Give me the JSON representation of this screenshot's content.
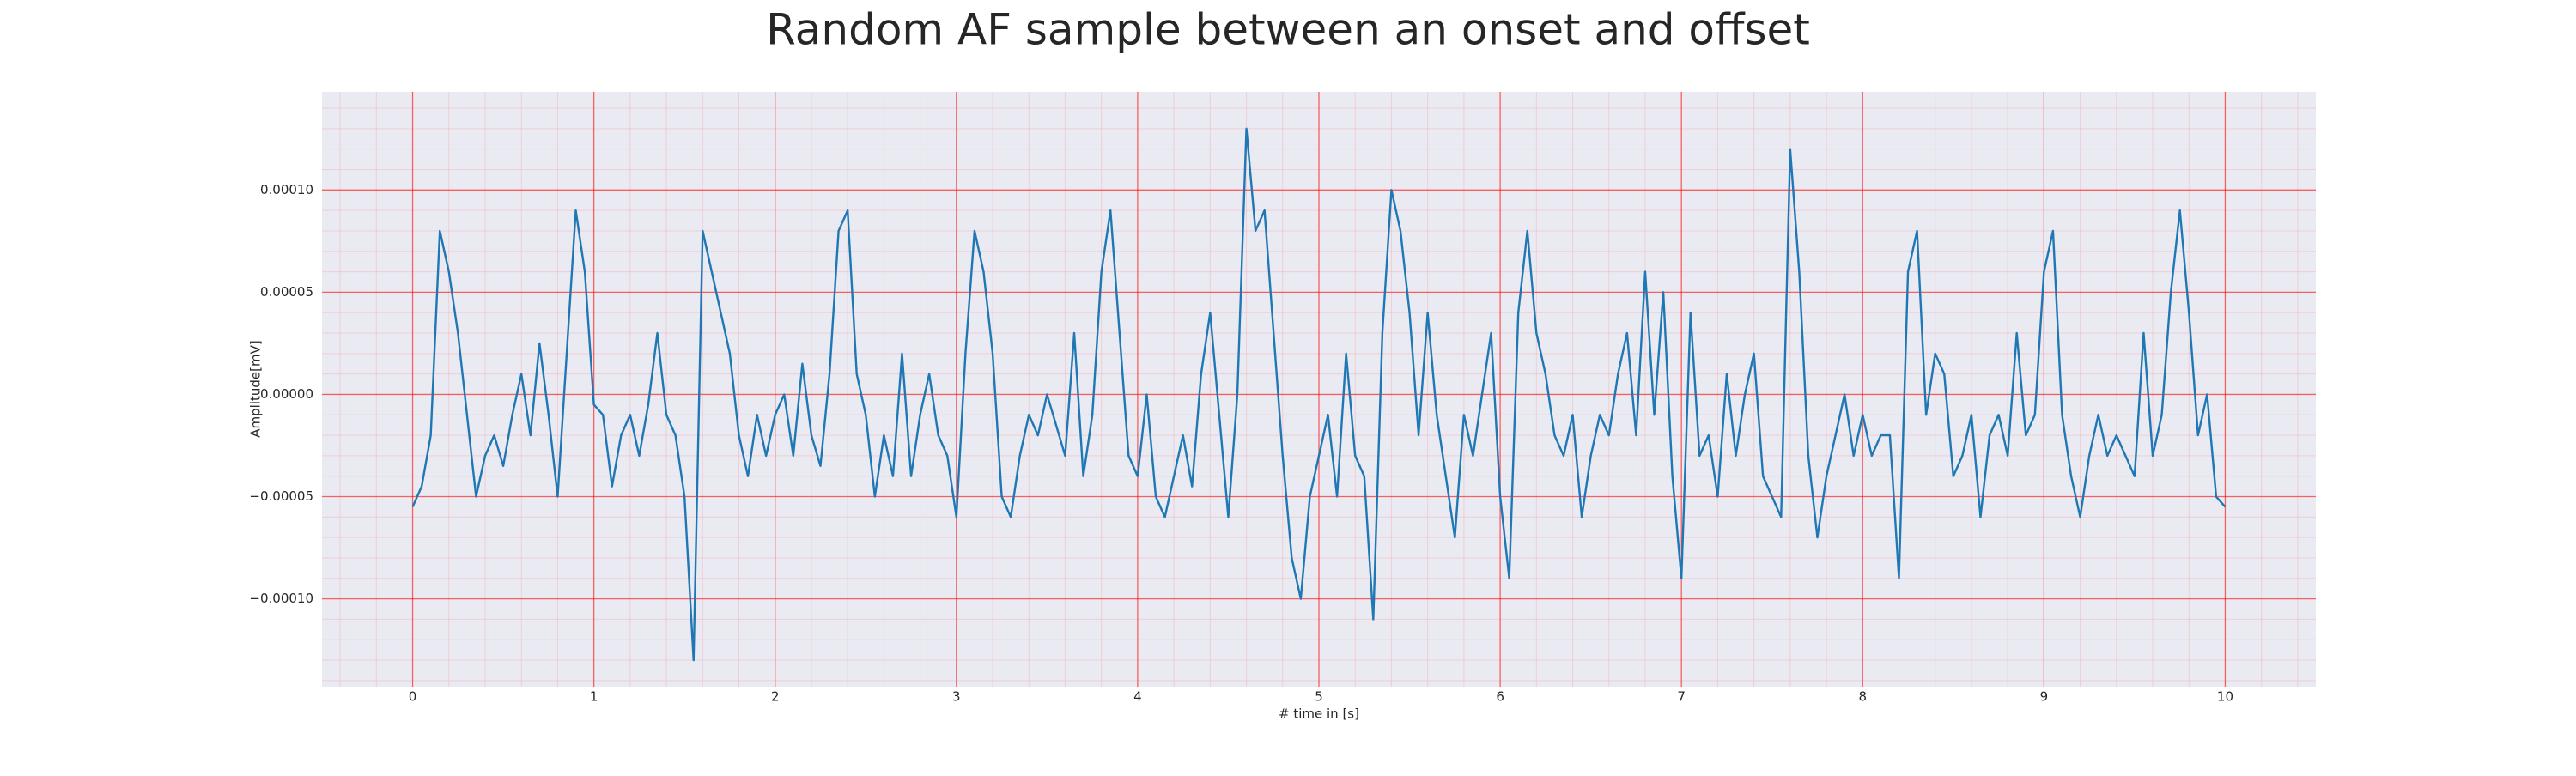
{
  "chart_data": {
    "type": "line",
    "title": "Random AF sample between an onset and offset",
    "xlabel": "# time in [s]",
    "ylabel": "Amplitude[mV]",
    "color": "#1f77b4",
    "grid": true,
    "minor_grid": true,
    "xlim": [
      -0.5,
      10.5
    ],
    "ylim": [
      -0.000143,
      0.000148
    ],
    "xticks": [
      0,
      1,
      2,
      3,
      4,
      5,
      6,
      7,
      8,
      9,
      10
    ],
    "yticks": [
      {
        "value": -0.0001,
        "label": "−0.00010"
      },
      {
        "value": -5e-05,
        "label": "−0.00005"
      },
      {
        "value": 0,
        "label": "0.00000"
      },
      {
        "value": 5e-05,
        "label": "0.00005"
      },
      {
        "value": 0.0001,
        "label": "0.00010"
      }
    ],
    "minor_xticks": [
      -0.4,
      -0.2,
      0,
      0.2,
      0.4,
      0.6,
      0.8,
      1,
      1.2,
      1.4,
      1.6,
      1.8,
      2,
      2.2,
      2.4,
      2.6,
      2.8,
      3,
      3.2,
      3.4,
      3.6,
      3.8,
      4,
      4.2,
      4.4,
      4.6,
      4.8,
      5,
      5.2,
      5.4,
      5.6,
      5.8,
      6,
      6.2,
      6.4,
      6.6,
      6.8,
      7,
      7.2,
      7.4,
      7.6,
      7.8,
      8,
      8.2,
      8.4,
      8.6,
      8.8,
      9,
      9.2,
      9.4,
      9.6,
      9.8,
      10,
      10.2,
      10.4
    ],
    "minor_yticks": [
      -0.00014,
      -0.00013,
      -0.00012,
      -0.00011,
      -0.0001,
      -9e-05,
      -8e-05,
      -7e-05,
      -6e-05,
      -5e-05,
      -4e-05,
      -3e-05,
      -2e-05,
      -1e-05,
      0,
      1e-05,
      2e-05,
      3e-05,
      4e-05,
      5e-05,
      6e-05,
      7e-05,
      8e-05,
      9e-05,
      0.0001,
      0.00011,
      0.00012,
      0.00013,
      0.00014
    ],
    "x": [
      0,
      0.05,
      0.1,
      0.15,
      0.2,
      0.25,
      0.3,
      0.35,
      0.4,
      0.45,
      0.5,
      0.55,
      0.6,
      0.65,
      0.7,
      0.75,
      0.8,
      0.85,
      0.9,
      0.95,
      1,
      1.05,
      1.1,
      1.15,
      1.2,
      1.25,
      1.3,
      1.35,
      1.4,
      1.45,
      1.5,
      1.55,
      1.6,
      1.65,
      1.7,
      1.75,
      1.8,
      1.85,
      1.9,
      1.95,
      2,
      2.05,
      2.1,
      2.15,
      2.2,
      2.25,
      2.3,
      2.35,
      2.4,
      2.45,
      2.5,
      2.55,
      2.6,
      2.65,
      2.7,
      2.75,
      2.8,
      2.85,
      2.9,
      2.95,
      3,
      3.05,
      3.1,
      3.15,
      3.2,
      3.25,
      3.3,
      3.35,
      3.4,
      3.45,
      3.5,
      3.55,
      3.6,
      3.65,
      3.7,
      3.75,
      3.8,
      3.85,
      3.9,
      3.95,
      4,
      4.05,
      4.1,
      4.15,
      4.2,
      4.25,
      4.3,
      4.35,
      4.4,
      4.45,
      4.5,
      4.55,
      4.6,
      4.65,
      4.7,
      4.75,
      4.8,
      4.85,
      4.9,
      4.95,
      5,
      5.05,
      5.1,
      5.15,
      5.2,
      5.25,
      5.3,
      5.35,
      5.4,
      5.45,
      5.5,
      5.55,
      5.6,
      5.65,
      5.7,
      5.75,
      5.8,
      5.85,
      5.9,
      5.95,
      6,
      6.05,
      6.1,
      6.15,
      6.2,
      6.25,
      6.3,
      6.35,
      6.4,
      6.45,
      6.5,
      6.55,
      6.6,
      6.65,
      6.7,
      6.75,
      6.8,
      6.85,
      6.9,
      6.95,
      7,
      7.05,
      7.1,
      7.15,
      7.2,
      7.25,
      7.3,
      7.35,
      7.4,
      7.45,
      7.5,
      7.55,
      7.6,
      7.65,
      7.7,
      7.75,
      7.8,
      7.85,
      7.9,
      7.95,
      8,
      8.05,
      8.1,
      8.15,
      8.2,
      8.25,
      8.3,
      8.35,
      8.4,
      8.45,
      8.5,
      8.55,
      8.6,
      8.65,
      8.7,
      8.75,
      8.8,
      8.85,
      8.9,
      8.95,
      9,
      9.05,
      9.1,
      9.15,
      9.2,
      9.25,
      9.3,
      9.35,
      9.4,
      9.45,
      9.5,
      9.55,
      9.6,
      9.65,
      9.7,
      9.75,
      9.8,
      9.85,
      9.9,
      9.95,
      10
    ],
    "values": [
      -5.5e-05,
      -4.5e-05,
      -2e-05,
      8e-05,
      6e-05,
      3e-05,
      -1e-05,
      -5e-05,
      -3e-05,
      -2e-05,
      -3.5e-05,
      -1e-05,
      1e-05,
      -2e-05,
      2.5e-05,
      -1e-05,
      -5e-05,
      2e-05,
      9e-05,
      6e-05,
      -5e-06,
      -1e-05,
      -4.5e-05,
      -2e-05,
      -1e-05,
      -3e-05,
      -5e-06,
      3e-05,
      -1e-05,
      -2e-05,
      -5e-05,
      -0.00013,
      8e-05,
      6e-05,
      4e-05,
      2e-05,
      -2e-05,
      -4e-05,
      -1e-05,
      -3e-05,
      -1e-05,
      0,
      -3e-05,
      1.5e-05,
      -2e-05,
      -3.5e-05,
      1e-05,
      8e-05,
      9e-05,
      1e-05,
      -1e-05,
      -5e-05,
      -2e-05,
      -4e-05,
      2e-05,
      -4e-05,
      -1e-05,
      1e-05,
      -2e-05,
      -3e-05,
      -6e-05,
      2e-05,
      8e-05,
      6e-05,
      2e-05,
      -5e-05,
      -6e-05,
      -3e-05,
      -1e-05,
      -2e-05,
      0,
      -1.5e-05,
      -3e-05,
      3e-05,
      -4e-05,
      -1e-05,
      6e-05,
      9e-05,
      3e-05,
      -3e-05,
      -4e-05,
      0,
      -5e-05,
      -6e-05,
      -4e-05,
      -2e-05,
      -4.5e-05,
      1e-05,
      4e-05,
      -1e-05,
      -6e-05,
      0,
      0.00013,
      8e-05,
      9e-05,
      3e-05,
      -3e-05,
      -8e-05,
      -0.0001,
      -5e-05,
      -3e-05,
      -1e-05,
      -5e-05,
      2e-05,
      -3e-05,
      -4e-05,
      -0.00011,
      3e-05,
      0.0001,
      8e-05,
      4e-05,
      -2e-05,
      4e-05,
      -1e-05,
      -4e-05,
      -7e-05,
      -1e-05,
      -3e-05,
      0,
      3e-05,
      -5e-05,
      -9e-05,
      4e-05,
      8e-05,
      3e-05,
      1e-05,
      -2e-05,
      -3e-05,
      -1e-05,
      -6e-05,
      -3e-05,
      -1e-05,
      -2e-05,
      1e-05,
      3e-05,
      -2e-05,
      6e-05,
      -1e-05,
      5e-05,
      -4e-05,
      -9e-05,
      4e-05,
      -3e-05,
      -2e-05,
      -5e-05,
      1e-05,
      -3e-05,
      0,
      2e-05,
      -4e-05,
      -5e-05,
      -6e-05,
      0.00012,
      6e-05,
      -3e-05,
      -7e-05,
      -4e-05,
      -2e-05,
      0,
      -3e-05,
      -1e-05,
      -3e-05,
      -2e-05,
      -2e-05,
      -9e-05,
      6e-05,
      8e-05,
      -1e-05,
      2e-05,
      1e-05,
      -4e-05,
      -3e-05,
      -1e-05,
      -6e-05,
      -2e-05,
      -1e-05,
      -3e-05,
      3e-05,
      -2e-05,
      -1e-05,
      6e-05,
      8e-05,
      -1e-05,
      -4e-05,
      -6e-05,
      -3e-05,
      -1e-05,
      -3e-05,
      -2e-05,
      -3e-05,
      -4e-05,
      3e-05,
      -3e-05,
      -1e-05,
      5e-05,
      9e-05,
      4e-05,
      -2e-05,
      0,
      -5e-05,
      -5.5e-05
    ]
  }
}
